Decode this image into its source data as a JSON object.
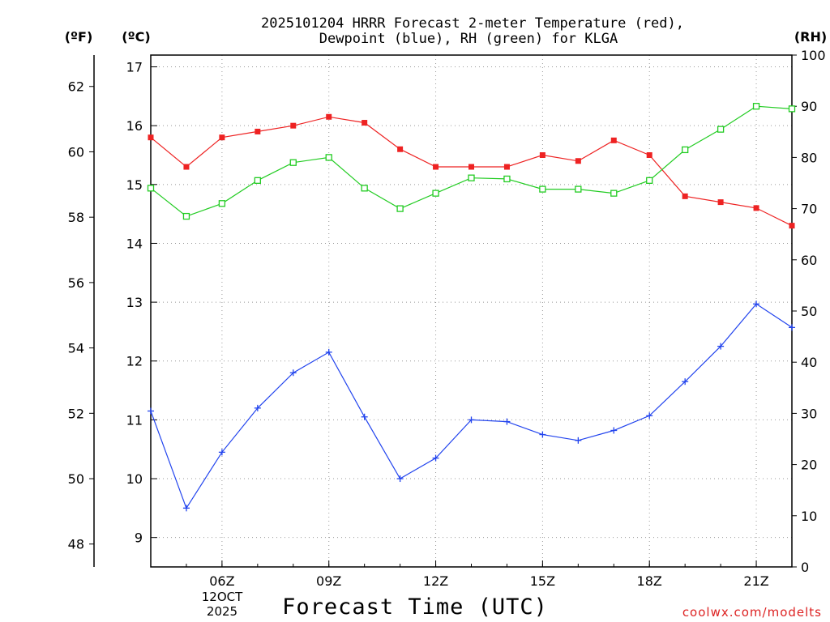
{
  "chart_data": {
    "type": "line",
    "title_line1": "2025101204 HRRR Forecast 2-meter Temperature (red),",
    "title_line2": "Dewpoint (blue), RH (green) for KLGA",
    "xlabel": "Forecast Time (UTC)",
    "watermark": "coolwx.com/modelts",
    "left_outer_unit": "(ºF)",
    "left_unit": "(ºC)",
    "right_unit": "(RH)",
    "x_hours": [
      4,
      5,
      6,
      7,
      8,
      9,
      10,
      11,
      12,
      13,
      14,
      15,
      16,
      17,
      18,
      19,
      20,
      21,
      22
    ],
    "xlim": [
      4,
      22
    ],
    "x_ticks": [
      {
        "hour": 6,
        "label": "06Z"
      },
      {
        "hour": 9,
        "label": "09Z"
      },
      {
        "hour": 12,
        "label": "12Z"
      },
      {
        "hour": 15,
        "label": "15Z"
      },
      {
        "hour": 18,
        "label": "18Z"
      },
      {
        "hour": 21,
        "label": "21Z"
      }
    ],
    "date_label_line1": "12OCT",
    "date_label_line2": "2025",
    "ylim_c": [
      8.5,
      17.2
    ],
    "y_ticks_c": [
      "9",
      "10",
      "11",
      "12",
      "13",
      "14",
      "15",
      "16",
      "17"
    ],
    "y_ticks_f": [
      "48",
      "50",
      "52",
      "54",
      "56",
      "58",
      "60",
      "62"
    ],
    "ylim_rh": [
      0,
      100
    ],
    "y_ticks_rh": [
      "0",
      "10",
      "20",
      "30",
      "40",
      "50",
      "60",
      "70",
      "80",
      "90",
      "100"
    ],
    "grid": true,
    "series": [
      {
        "name": "Temperature",
        "units": "C",
        "color": "#ee2222",
        "marker": "filled-square",
        "values": [
          15.8,
          15.3,
          15.8,
          15.9,
          16.0,
          16.15,
          16.05,
          15.6,
          15.3,
          15.3,
          15.3,
          15.5,
          15.4,
          15.75,
          15.5,
          14.8,
          14.7,
          14.6,
          14.3
        ]
      },
      {
        "name": "Dewpoint",
        "units": "C",
        "color": "#2244ee",
        "marker": "plus",
        "values": [
          11.15,
          9.5,
          10.45,
          11.2,
          11.8,
          12.15,
          11.05,
          10.0,
          10.35,
          11.0,
          10.97,
          10.75,
          10.65,
          10.82,
          11.07,
          11.65,
          12.25,
          12.97,
          12.57
        ]
      },
      {
        "name": "RH",
        "units": "%",
        "color": "#22cc22",
        "marker": "open-square",
        "values": [
          74,
          68.5,
          71,
          75.5,
          79,
          80,
          74,
          70,
          73,
          76,
          75.8,
          73.8,
          73.8,
          73,
          75.5,
          81.5,
          85.5,
          90,
          89.5
        ]
      }
    ]
  }
}
